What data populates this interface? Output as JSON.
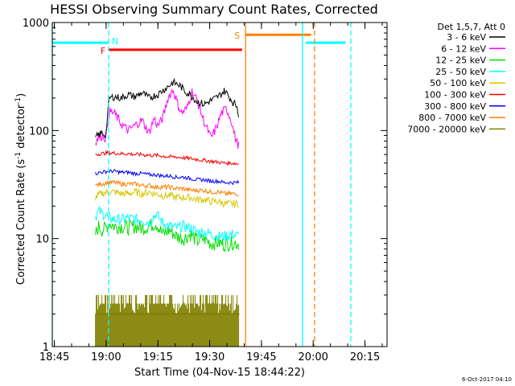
{
  "chart_data": {
    "type": "line",
    "title": "HESSI Observing Summary Count Rates, Corrected",
    "xlabel": "Start Time (04-Nov-15 18:44:22)",
    "ylabel": "Corrected Count Rate (s⁻¹ detector⁻¹)",
    "ylabel_main": "Corrected Count Rate (s",
    "ylabel_sup1": "-1",
    "ylabel_mid": " detector",
    "ylabel_sup2": "-1",
    "ylabel_end": ")",
    "x_unit": "minutes after 18:44:22",
    "xlim": [
      0,
      97
    ],
    "ylim": [
      1,
      1000
    ],
    "yscale": "log",
    "xticks": [
      {
        "x": 0.6,
        "label": "18:45"
      },
      {
        "x": 15.6,
        "label": "19:00"
      },
      {
        "x": 30.6,
        "label": "19:15"
      },
      {
        "x": 45.6,
        "label": "19:30"
      },
      {
        "x": 60.6,
        "label": "19:45"
      },
      {
        "x": 75.6,
        "label": "20:00"
      },
      {
        "x": 90.6,
        "label": "20:15"
      }
    ],
    "yticks": [
      {
        "y": 1,
        "label": "1"
      },
      {
        "y": 10,
        "label": "10"
      },
      {
        "y": 100,
        "label": "100"
      },
      {
        "y": 1000,
        "label": "1000"
      }
    ],
    "legend_title": "Det 1,5,7, Att 0",
    "legend_position": "right",
    "series": [
      {
        "name": "3 - 6 keV",
        "color": "#000000",
        "x": [
          12.5,
          13.5,
          14.5,
          15.5,
          16.5,
          18,
          20,
          22,
          24,
          26,
          28,
          29.5,
          30.5,
          32,
          33.5,
          35,
          37,
          38.5,
          40,
          42,
          44,
          46,
          48,
          50,
          51,
          52.5,
          53.5,
          54.2
        ],
        "y": [
          85,
          92,
          95,
          90,
          200,
          205,
          200,
          215,
          205,
          225,
          200,
          210,
          215,
          235,
          255,
          280,
          260,
          230,
          215,
          185,
          175,
          190,
          205,
          235,
          210,
          180,
          170,
          130
        ]
      },
      {
        "name": "6 - 12 keV",
        "color": "#ff00ff",
        "x": [
          12.5,
          13.5,
          14.5,
          15.5,
          16.5,
          18,
          20,
          22,
          24,
          26,
          28,
          29.5,
          30.5,
          32,
          33.5,
          35,
          36.5,
          37.5,
          39,
          40.5,
          42,
          44,
          46,
          47.5,
          49,
          50.5,
          52,
          53,
          54.2
        ],
        "y": [
          80,
          86,
          90,
          85,
          150,
          145,
          115,
          100,
          112,
          125,
          95,
          130,
          110,
          130,
          200,
          240,
          170,
          145,
          160,
          230,
          190,
          120,
          85,
          105,
          145,
          160,
          120,
          85,
          70
        ]
      },
      {
        "name": "12 - 25 keV",
        "color": "#00dd00",
        "x": [
          12.5,
          13.5,
          14.5,
          15.5,
          16.5,
          18,
          20,
          22,
          24,
          26,
          28,
          30,
          32,
          34,
          36,
          38,
          40,
          42,
          44,
          46,
          48,
          50,
          52,
          54.2
        ],
        "y": [
          11,
          13,
          12,
          12.5,
          14,
          13,
          13,
          12.5,
          13,
          12.5,
          13,
          14,
          11,
          12,
          10.5,
          10,
          11,
          9.5,
          10,
          9,
          9.2,
          8.8,
          9.2,
          9
        ]
      },
      {
        "name": "25 - 50 keV",
        "color": "#00ffff",
        "x": [
          12.5,
          13.5,
          14.5,
          15.5,
          16.5,
          18,
          20,
          22,
          24,
          26,
          28,
          30,
          32,
          34,
          36,
          38,
          40,
          42,
          44,
          46,
          48,
          50,
          52,
          54.2
        ],
        "y": [
          16,
          18,
          17,
          16.5,
          15.5,
          15,
          15,
          15.5,
          15,
          15,
          14,
          17,
          14,
          13,
          12.5,
          13,
          12.5,
          11.5,
          11.5,
          11,
          10.5,
          10.5,
          11,
          10.5
        ]
      },
      {
        "name": "50 - 100 keV",
        "color": "#d4c800",
        "x": [
          12.5,
          14,
          16,
          18,
          20,
          22,
          24,
          26,
          28,
          30,
          32,
          34,
          36,
          38,
          40,
          42,
          44,
          46,
          48,
          50,
          52,
          54.2
        ],
        "y": [
          24,
          26,
          27,
          27,
          26,
          26,
          27,
          26,
          27,
          26,
          25,
          25,
          24,
          24,
          24,
          23,
          23,
          22,
          22,
          21,
          21,
          21
        ]
      },
      {
        "name": "100 - 300 keV",
        "color": "#ff0000",
        "x": [
          12.5,
          14,
          16,
          18,
          20,
          22,
          24,
          26,
          28,
          30,
          32,
          34,
          36,
          38,
          40,
          42,
          44,
          46,
          48,
          50,
          52,
          54.2
        ],
        "y": [
          60,
          61,
          62,
          62,
          61,
          61,
          60,
          60,
          59,
          59,
          58,
          57,
          57,
          56,
          55,
          54,
          53,
          52,
          51,
          50,
          50,
          49
        ]
      },
      {
        "name": "300 - 800 keV",
        "color": "#0000ff",
        "x": [
          12.5,
          14,
          16,
          18,
          20,
          22,
          24,
          26,
          28,
          30,
          32,
          34,
          36,
          38,
          40,
          42,
          44,
          46,
          48,
          50,
          52,
          54.2
        ],
        "y": [
          40,
          41,
          42,
          42,
          41,
          41,
          40,
          40,
          39,
          39,
          38,
          38,
          37,
          37,
          36,
          35,
          35,
          34,
          34,
          33,
          33,
          33
        ]
      },
      {
        "name": "800 - 7000 keV",
        "color": "#ff8000",
        "x": [
          12.5,
          14,
          16,
          18,
          20,
          22,
          24,
          26,
          28,
          30,
          32,
          34,
          36,
          38,
          40,
          42,
          44,
          46,
          48,
          50,
          52,
          54.2
        ],
        "y": [
          31,
          32,
          33,
          33,
          32,
          32,
          32,
          31,
          31,
          30,
          30,
          30,
          29,
          29,
          28,
          28,
          28,
          27,
          27,
          26,
          26,
          26
        ]
      },
      {
        "name": "7000 - 20000 keV",
        "color": "#808000",
        "x": [
          12.5,
          14,
          16,
          18,
          20,
          22,
          24,
          26,
          28,
          30,
          32,
          34,
          36,
          38,
          40,
          42,
          44,
          46,
          48,
          50,
          52,
          54.2
        ],
        "y": [
          2,
          2.5,
          2,
          2.8,
          2,
          2.6,
          2,
          2.5,
          2,
          2.8,
          2,
          2.7,
          2,
          2.6,
          2,
          2.5,
          2,
          2.8,
          2,
          2.6,
          2,
          2.5
        ]
      }
    ],
    "annotations": [
      {
        "type": "bar",
        "label": "N",
        "color": "#00ffff",
        "x0": 0,
        "x1": 16.3,
        "y": 650
      },
      {
        "type": "bar",
        "label": "",
        "color": "#00ffff",
        "x0": 73.5,
        "x1": 85,
        "y": 650
      },
      {
        "type": "bar",
        "label": "F",
        "color": "#ff0000",
        "x0": 16.3,
        "x1": 55,
        "y": 560
      },
      {
        "type": "bar",
        "label": "S",
        "color": "#ff8000",
        "x0": 56,
        "x1": 75,
        "y": 770
      },
      {
        "type": "vline",
        "color": "#00ffff",
        "x": 0,
        "style": "solid"
      },
      {
        "type": "vline",
        "color": "#00ffff",
        "x": 16.3,
        "style": "dashed"
      },
      {
        "type": "vline",
        "color": "#00ffff",
        "x": 72.5,
        "style": "solid"
      },
      {
        "type": "vline",
        "color": "#00ffff",
        "x": 86.5,
        "style": "dashed"
      },
      {
        "type": "vline",
        "color": "#ff8000",
        "x": 56,
        "style": "solid"
      },
      {
        "type": "vline",
        "color": "#ff8000",
        "x": 76,
        "style": "dashed"
      }
    ],
    "footer": "6-Oct-2017 04:10"
  }
}
